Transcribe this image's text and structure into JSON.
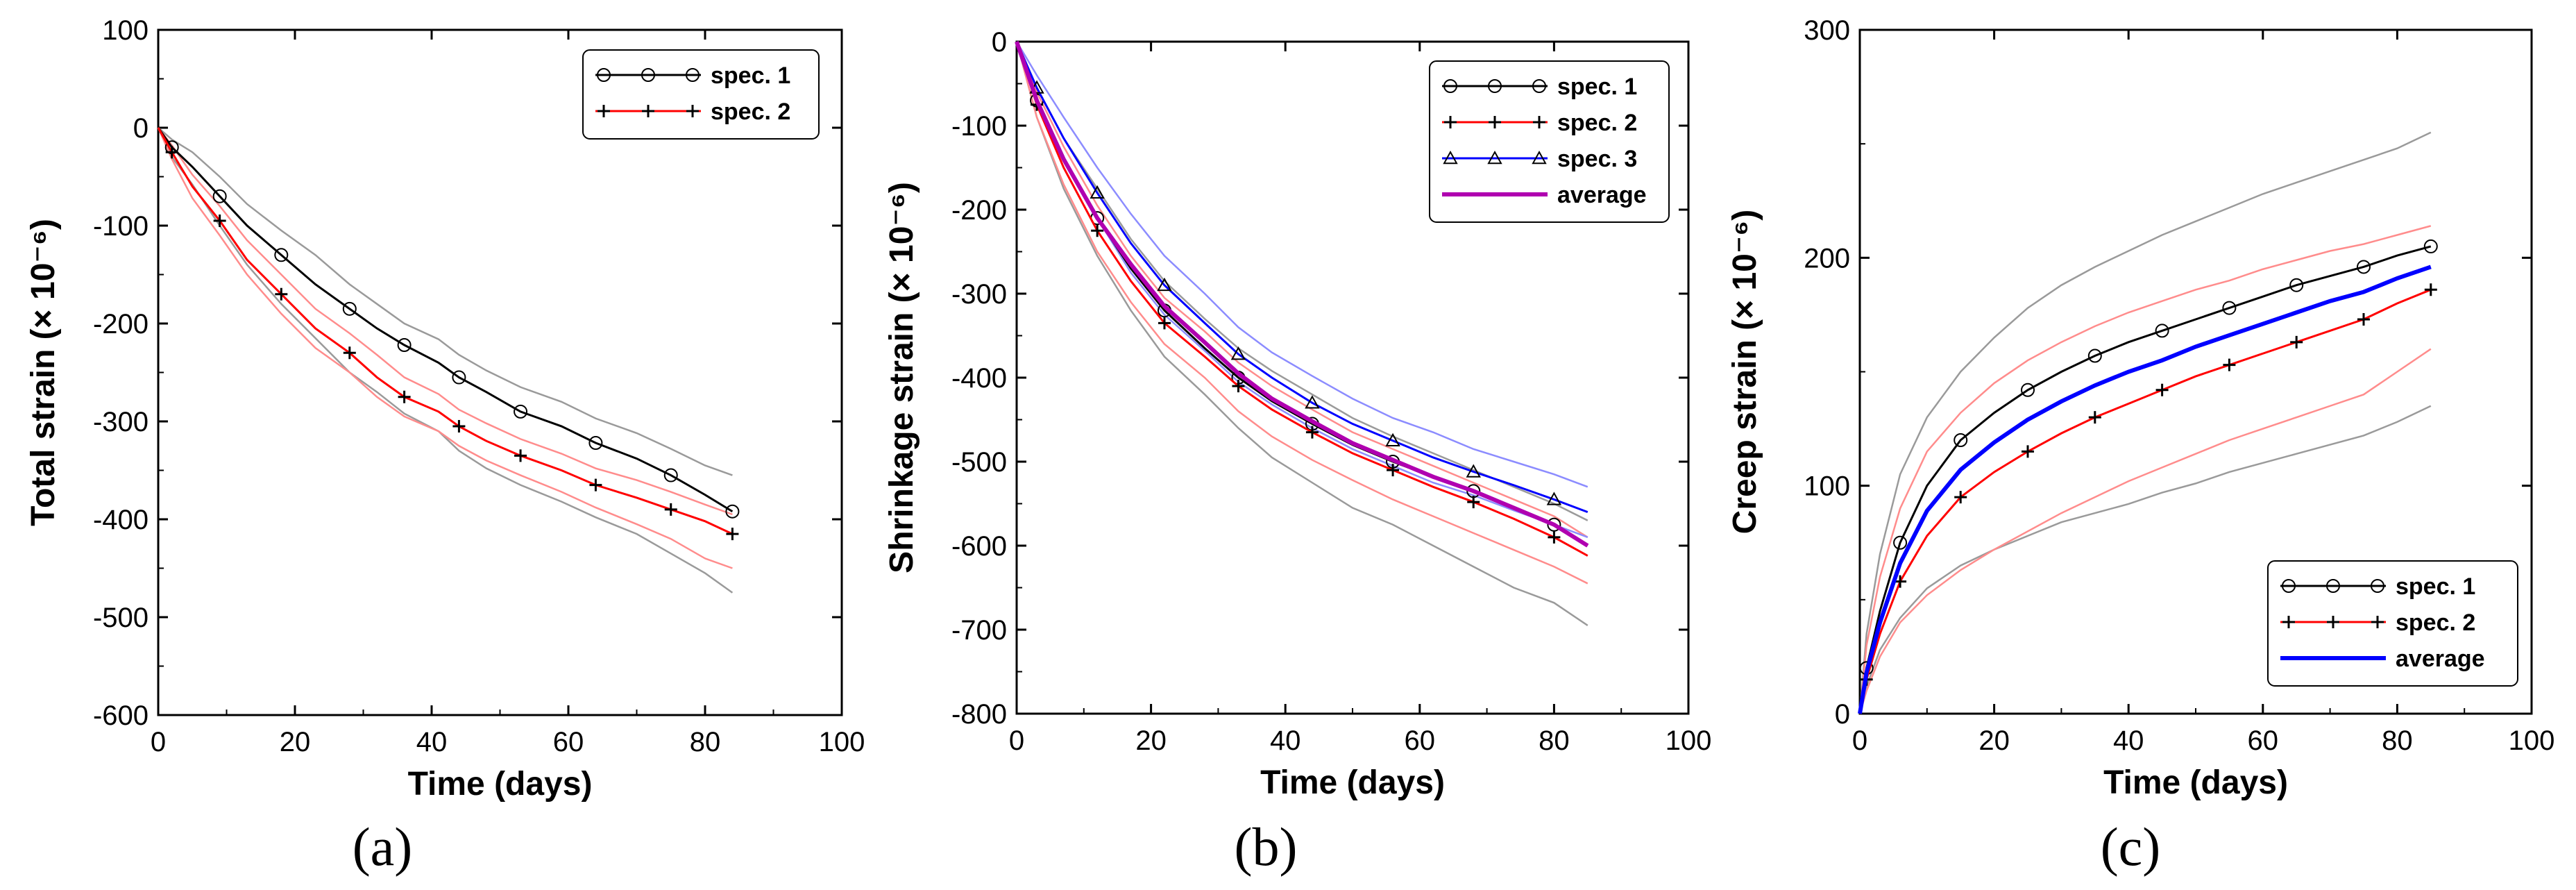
{
  "figure": {
    "panel_labels": [
      "(a)",
      "(b)",
      "(c)"
    ]
  },
  "chart_data": [
    {
      "type": "line",
      "panel": "(a)",
      "xlabel": "Time (days)",
      "ylabel": "Total strain (× 10⁻⁶)",
      "xlim": [
        0,
        100
      ],
      "ylim": [
        -600,
        100
      ],
      "xticks": [
        "0",
        "20",
        "40",
        "60",
        "80",
        "100"
      ],
      "yticks": [
        "-600",
        "-500",
        "-400",
        "-300",
        "-200",
        "-100",
        "0",
        "100"
      ],
      "legend_position": "top-right",
      "series": [
        {
          "name": "spec. 1",
          "color": "#000000",
          "marker": "circle",
          "x": [
            0,
            2,
            5,
            9,
            13,
            18,
            23,
            28,
            32,
            36,
            41,
            44,
            48,
            53,
            59,
            64,
            70,
            75,
            80,
            84
          ],
          "y": [
            0,
            -20,
            -40,
            -70,
            -100,
            -130,
            -160,
            -185,
            -205,
            -222,
            -240,
            -255,
            -270,
            -290,
            -305,
            -322,
            -338,
            -355,
            -375,
            -392
          ],
          "band_upper": [
            0,
            -12,
            -25,
            -50,
            -78,
            -105,
            -130,
            -160,
            -180,
            -200,
            -216,
            -232,
            -248,
            -265,
            -280,
            -297,
            -312,
            -328,
            -345,
            -355
          ],
          "band_lower": [
            0,
            -30,
            -58,
            -100,
            -140,
            -180,
            -215,
            -250,
            -270,
            -292,
            -310,
            -330,
            -348,
            -365,
            -382,
            -398,
            -415,
            -435,
            -455,
            -475
          ]
        },
        {
          "name": "spec. 2",
          "color": "#ff0000",
          "marker": "plus",
          "x": [
            0,
            2,
            5,
            9,
            13,
            18,
            23,
            28,
            32,
            36,
            41,
            44,
            48,
            53,
            59,
            64,
            70,
            75,
            80,
            84
          ],
          "y": [
            0,
            -25,
            -60,
            -95,
            -135,
            -170,
            -205,
            -230,
            -255,
            -275,
            -290,
            -305,
            -320,
            -335,
            -350,
            -365,
            -378,
            -390,
            -402,
            -415
          ],
          "band_upper": [
            0,
            -18,
            -48,
            -80,
            -115,
            -150,
            -185,
            -210,
            -232,
            -255,
            -272,
            -288,
            -302,
            -318,
            -333,
            -348,
            -360,
            -372,
            -385,
            -395
          ],
          "band_lower": [
            0,
            -32,
            -72,
            -110,
            -150,
            -190,
            -225,
            -250,
            -275,
            -295,
            -310,
            -325,
            -340,
            -355,
            -372,
            -388,
            -405,
            -420,
            -440,
            -450
          ]
        }
      ]
    },
    {
      "type": "line",
      "panel": "(b)",
      "xlabel": "Time (days)",
      "ylabel": "Shrinkage strain (× 10⁻⁶)",
      "xlim": [
        0,
        100
      ],
      "ylim": [
        -800,
        0
      ],
      "xticks": [
        "0",
        "20",
        "40",
        "60",
        "80",
        "100"
      ],
      "yticks": [
        "-800",
        "-700",
        "-600",
        "-500",
        "-400",
        "-300",
        "-200",
        "-100",
        "0"
      ],
      "legend_position": "top-right",
      "series": [
        {
          "name": "spec. 1",
          "color": "#000000",
          "marker": "circle",
          "x": [
            0,
            3,
            7,
            12,
            17,
            22,
            28,
            33,
            38,
            44,
            50,
            56,
            62,
            68,
            74,
            80,
            85
          ],
          "y": [
            0,
            -70,
            -140,
            -210,
            -270,
            -320,
            -365,
            -400,
            -428,
            -455,
            -480,
            -500,
            -518,
            -535,
            -555,
            -575,
            -600
          ],
          "band_upper": [
            0,
            -55,
            -115,
            -175,
            -235,
            -285,
            -330,
            -365,
            -392,
            -420,
            -448,
            -470,
            -490,
            -510,
            -530,
            -550,
            -570
          ],
          "band_lower": [
            0,
            -90,
            -175,
            -255,
            -320,
            -375,
            -420,
            -460,
            -495,
            -525,
            -555,
            -575,
            -600,
            -625,
            -650,
            -668,
            -695
          ]
        },
        {
          "name": "spec. 2",
          "color": "#ff0000",
          "marker": "plus",
          "x": [
            0,
            3,
            7,
            12,
            17,
            22,
            28,
            33,
            38,
            44,
            50,
            56,
            62,
            68,
            74,
            80,
            85
          ],
          "y": [
            0,
            -75,
            -150,
            -225,
            -285,
            -335,
            -375,
            -410,
            -438,
            -465,
            -490,
            -510,
            -530,
            -548,
            -568,
            -590,
            -612
          ],
          "band_upper": [
            0,
            -60,
            -125,
            -195,
            -255,
            -305,
            -345,
            -382,
            -410,
            -438,
            -465,
            -485,
            -505,
            -525,
            -545,
            -565,
            -590
          ],
          "band_lower": [
            0,
            -90,
            -170,
            -250,
            -310,
            -360,
            -400,
            -440,
            -470,
            -498,
            -522,
            -545,
            -565,
            -585,
            -605,
            -625,
            -645
          ]
        },
        {
          "name": "spec. 3",
          "color": "#0000ff",
          "marker": "triangle",
          "x": [
            0,
            3,
            7,
            12,
            17,
            22,
            28,
            33,
            38,
            44,
            50,
            56,
            62,
            68,
            74,
            80,
            85
          ],
          "y": [
            0,
            -55,
            -115,
            -180,
            -240,
            -290,
            -335,
            -372,
            -400,
            -430,
            -455,
            -475,
            -495,
            -512,
            -528,
            -545,
            -560
          ],
          "band_upper": [
            0,
            -40,
            -90,
            -150,
            -205,
            -255,
            -300,
            -340,
            -370,
            -398,
            -425,
            -448,
            -465,
            -485,
            -500,
            -515,
            -530
          ],
          "band_lower": [
            0,
            -70,
            -140,
            -210,
            -275,
            -325,
            -368,
            -405,
            -432,
            -460,
            -485,
            -505,
            -525,
            -540,
            -558,
            -575,
            -590
          ]
        },
        {
          "name": "average",
          "color": "#b000b0",
          "marker": "none",
          "x": [
            0,
            3,
            7,
            12,
            17,
            22,
            28,
            33,
            38,
            44,
            50,
            56,
            62,
            68,
            74,
            80,
            85
          ],
          "y": [
            0,
            -70,
            -140,
            -210,
            -265,
            -315,
            -358,
            -395,
            -425,
            -452,
            -478,
            -498,
            -518,
            -535,
            -555,
            -575,
            -600
          ]
        }
      ]
    },
    {
      "type": "line",
      "panel": "(c)",
      "xlabel": "Time (days)",
      "ylabel": "Creep strain (× 10⁻⁶)",
      "xlim": [
        0,
        100
      ],
      "ylim": [
        0,
        300
      ],
      "xticks": [
        "0",
        "20",
        "40",
        "60",
        "80",
        "100"
      ],
      "yticks": [
        "0",
        "100",
        "200",
        "300"
      ],
      "legend_position": "bottom-right",
      "series": [
        {
          "name": "spec. 1",
          "color": "#000000",
          "marker": "circle",
          "x": [
            0,
            1,
            3,
            6,
            10,
            15,
            20,
            25,
            30,
            35,
            40,
            45,
            50,
            55,
            60,
            65,
            70,
            75,
            80,
            85
          ],
          "y": [
            0,
            20,
            45,
            75,
            100,
            120,
            132,
            142,
            150,
            157,
            163,
            168,
            173,
            178,
            183,
            188,
            192,
            196,
            201,
            205
          ],
          "band_upper": [
            0,
            35,
            70,
            105,
            130,
            150,
            165,
            178,
            188,
            196,
            203,
            210,
            216,
            222,
            228,
            233,
            238,
            243,
            248,
            255
          ],
          "band_lower": [
            0,
            12,
            28,
            42,
            55,
            65,
            72,
            78,
            84,
            88,
            92,
            97,
            101,
            106,
            110,
            114,
            118,
            122,
            128,
            135
          ]
        },
        {
          "name": "spec. 2",
          "color": "#ff0000",
          "marker": "plus",
          "x": [
            0,
            1,
            3,
            6,
            10,
            15,
            20,
            25,
            30,
            35,
            40,
            45,
            50,
            55,
            60,
            65,
            70,
            75,
            80,
            85
          ],
          "y": [
            0,
            15,
            35,
            58,
            78,
            95,
            106,
            115,
            123,
            130,
            136,
            142,
            148,
            153,
            158,
            163,
            168,
            173,
            180,
            186
          ],
          "band_upper": [
            0,
            30,
            60,
            90,
            115,
            132,
            145,
            155,
            163,
            170,
            176,
            181,
            186,
            190,
            195,
            199,
            203,
            206,
            210,
            214
          ],
          "band_lower": [
            0,
            10,
            25,
            40,
            52,
            63,
            72,
            80,
            88,
            95,
            102,
            108,
            114,
            120,
            125,
            130,
            135,
            140,
            150,
            160
          ]
        },
        {
          "name": "average",
          "color": "#0000ff",
          "marker": "none",
          "x": [
            0,
            1,
            3,
            6,
            10,
            15,
            20,
            25,
            30,
            35,
            40,
            45,
            50,
            55,
            60,
            65,
            70,
            75,
            80,
            85
          ],
          "y": [
            0,
            18,
            40,
            66,
            89,
            107,
            119,
            129,
            137,
            144,
            150,
            155,
            161,
            166,
            171,
            176,
            181,
            185,
            191,
            196
          ]
        }
      ]
    }
  ]
}
